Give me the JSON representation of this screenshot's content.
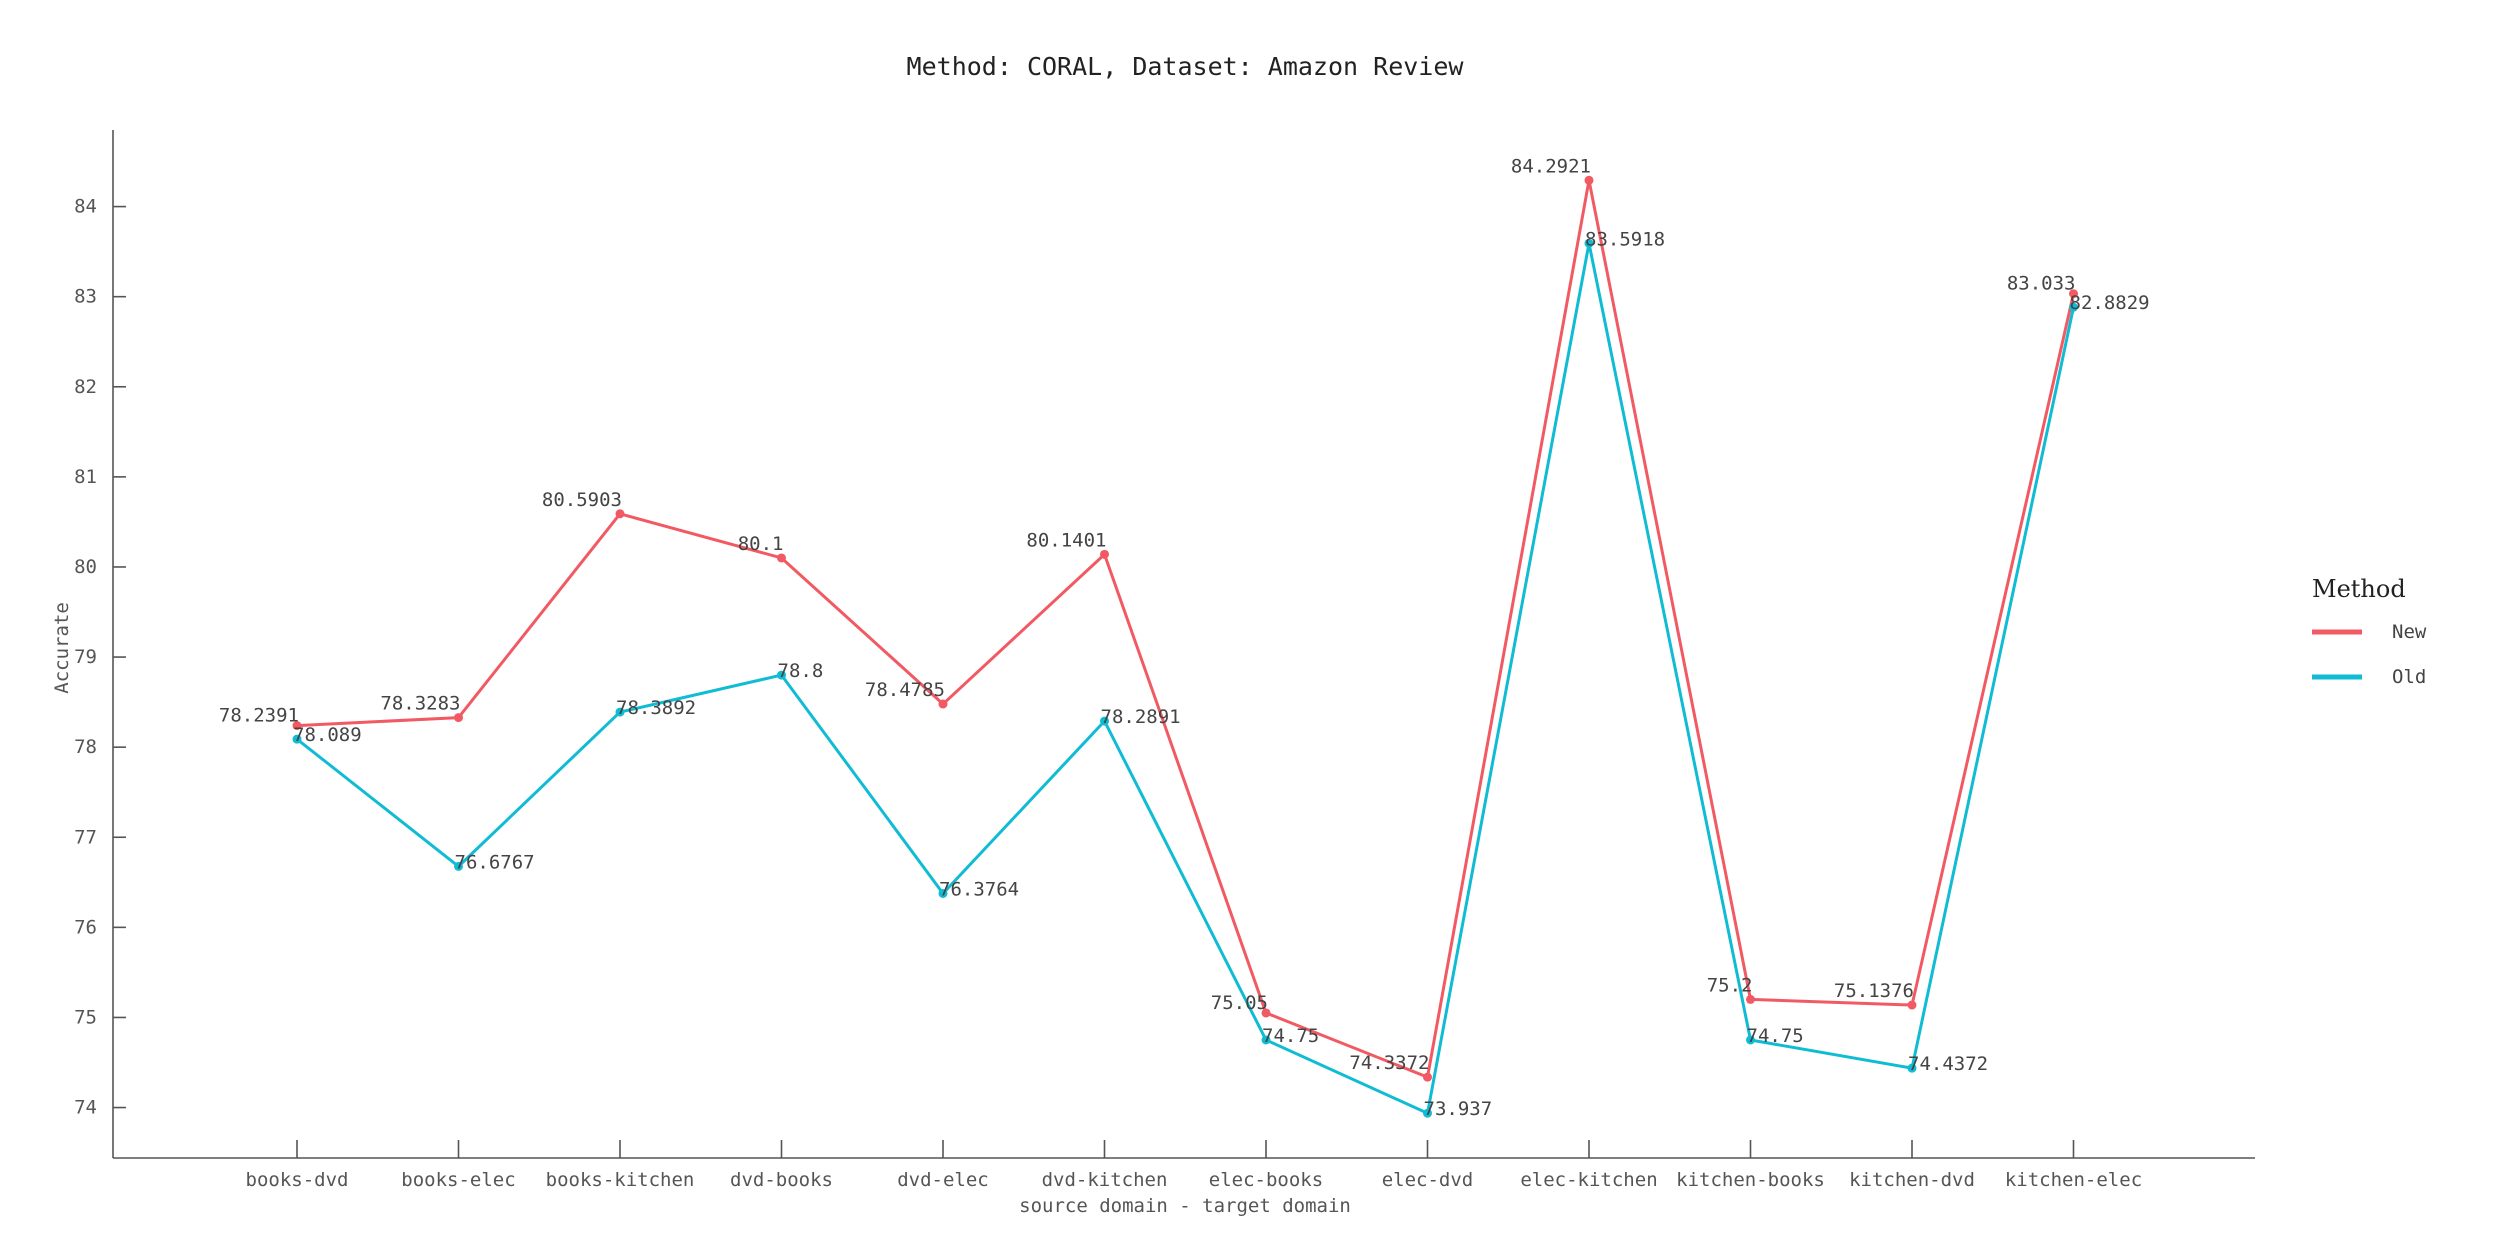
{
  "chart_data": {
    "type": "line",
    "title": "Method: CORAL, Dataset: Amazon Review",
    "xlabel": "source domain - target domain",
    "ylabel": "Accurate",
    "categories": [
      "books-dvd",
      "books-elec",
      "books-kitchen",
      "dvd-books",
      "dvd-elec",
      "dvd-kitchen",
      "elec-books",
      "elec-dvd",
      "elec-kitchen",
      "kitchen-books",
      "kitchen-dvd",
      "kitchen-elec"
    ],
    "yticks": [
      74,
      75,
      76,
      77,
      78,
      79,
      80,
      81,
      82,
      83,
      84
    ],
    "ylim": [
      73.44,
      84.85
    ],
    "grid": false,
    "legend": {
      "title": "Method",
      "position": "right"
    },
    "series": [
      {
        "name": "New",
        "color": "#f25a63",
        "values": [
          78.2391,
          78.3283,
          80.5903,
          80.1,
          78.4785,
          80.1401,
          75.05,
          74.3372,
          84.2921,
          75.2,
          75.1376,
          83.033
        ],
        "labels": [
          "78.2391",
          "78.3283",
          "80.5903",
          "80.1",
          "78.4785",
          "80.1401",
          "75.05",
          "74.3372",
          "84.2921",
          "75.2",
          "75.1376",
          "83.033"
        ]
      },
      {
        "name": "Old",
        "color": "#10bcd4",
        "values": [
          78.089,
          76.6767,
          78.3892,
          78.8,
          76.3764,
          78.2891,
          74.75,
          73.937,
          83.5918,
          74.75,
          74.4372,
          82.8829
        ],
        "labels": [
          "78.089",
          "76.6767",
          "78.3892",
          "78.8",
          "76.3764",
          "78.2891",
          "74.75",
          "73.937",
          "83.5918",
          "74.75",
          "74.4372",
          "82.8829"
        ]
      }
    ]
  }
}
